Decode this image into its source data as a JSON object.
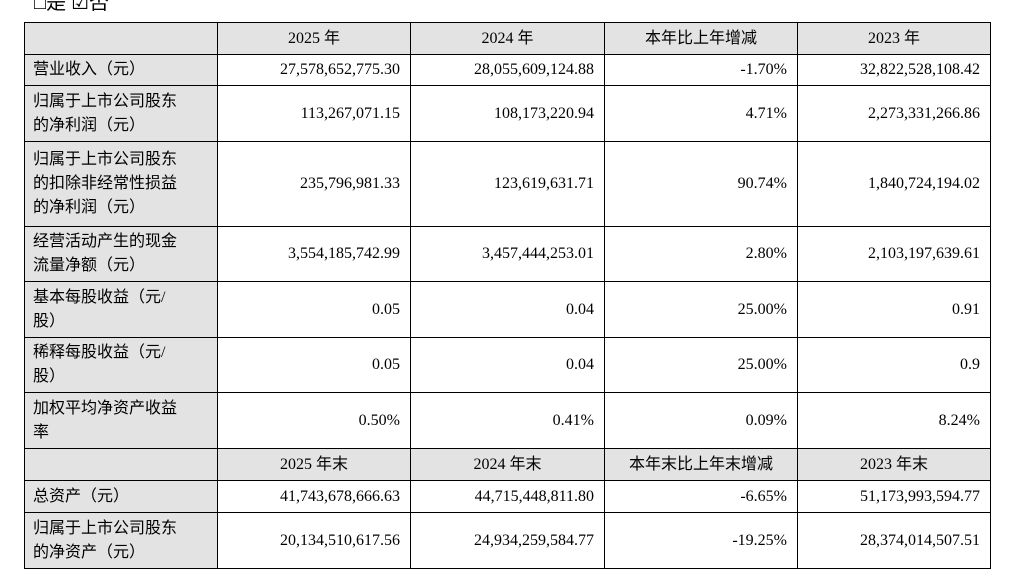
{
  "header_note": "□是 ☑否",
  "table": {
    "header": [
      "2025 年",
      "2024 年",
      "本年比上年增减",
      "2023 年"
    ],
    "rows": [
      {
        "label": [
          "营业收入（元）"
        ],
        "cells": [
          "27,578,652,775.30",
          "28,055,609,124.88",
          "-1.70%",
          "32,822,528,108.42"
        ]
      },
      {
        "label": [
          "归属于上市公司股东",
          "的净利润（元）"
        ],
        "cells": [
          "113,267,071.15",
          "108,173,220.94",
          "4.71%",
          "2,273,331,266.86"
        ]
      },
      {
        "label": [
          "归属于上市公司股东",
          "的扣除非经常性损益",
          "的净利润（元）"
        ],
        "cells": [
          "235,796,981.33",
          "123,619,631.71",
          "90.74%",
          "1,840,724,194.02"
        ]
      },
      {
        "label": [
          "经营活动产生的现金",
          "流量净额（元）"
        ],
        "cells": [
          "3,554,185,742.99",
          "3,457,444,253.01",
          "2.80%",
          "2,103,197,639.61"
        ]
      },
      {
        "label": [
          "基本每股收益（元/",
          "股）"
        ],
        "cells": [
          "0.05",
          "0.04",
          "25.00%",
          "0.91"
        ]
      },
      {
        "label": [
          "稀释每股收益（元/",
          "股）"
        ],
        "cells": [
          "0.05",
          "0.04",
          "25.00%",
          "0.9"
        ]
      },
      {
        "label": [
          "加权平均净资产收益",
          "率"
        ],
        "cells": [
          "0.50%",
          "0.41%",
          "0.09%",
          "8.24%"
        ]
      }
    ],
    "header2": [
      "2025 年末",
      "2024 年末",
      "本年末比上年末增减",
      "2023 年末"
    ],
    "rows2": [
      {
        "label": [
          "总资产（元）"
        ],
        "cells": [
          "41,743,678,666.63",
          "44,715,448,811.80",
          "-6.65%",
          "51,173,993,594.77"
        ]
      },
      {
        "label": [
          "归属于上市公司股东",
          "的净资产（元）"
        ],
        "cells": [
          "20,134,510,617.56",
          "24,934,259,584.77",
          "-19.25%",
          "28,374,014,507.51"
        ]
      }
    ]
  }
}
